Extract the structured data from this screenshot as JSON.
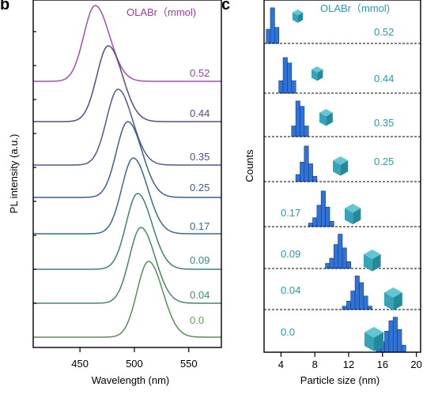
{
  "panel_labels": {
    "left": "b",
    "right": "c"
  },
  "chart_data": [
    {
      "type": "line",
      "legend_title": "OLABr（mmol)",
      "xlabel": "Wavelength (nm)",
      "ylabel": "PL intensity (a.u.)",
      "x_ticks": [
        "450",
        "500",
        "550"
      ],
      "xlim": [
        407,
        580
      ],
      "series": [
        {
          "name": "0.52",
          "peak_nm": 464,
          "color": "#a150a8",
          "label_color": "#9c3f9e"
        },
        {
          "name": "0.44",
          "peak_nm": 476,
          "color": "#5a4a82",
          "label_color": "#5a3f8e"
        },
        {
          "name": "0.35",
          "peak_nm": 485,
          "color": "#4d5c8a",
          "label_color": "#4a4f92"
        },
        {
          "name": "0.25",
          "peak_nm": 494,
          "color": "#3f5f88",
          "label_color": "#3d5e94"
        },
        {
          "name": "0.17",
          "peak_nm": 499,
          "color": "#3a6a88",
          "label_color": "#2d7196"
        },
        {
          "name": "0.09",
          "peak_nm": 503,
          "color": "#3f7e7e",
          "label_color": "#2e8c8a"
        },
        {
          "name": "0.04",
          "peak_nm": 506,
          "color": "#4a8462",
          "label_color": "#3a8f6a"
        },
        {
          "name": "0.0",
          "peak_nm": 513,
          "color": "#5a8c56",
          "label_color": "#5aa25a"
        }
      ]
    },
    {
      "type": "bar",
      "legend_title": "OLABr（mmol)",
      "xlabel": "Particle size (nm)",
      "ylabel": "Counts",
      "x_ticks": [
        "4",
        "8",
        "12",
        "16",
        "20"
      ],
      "xlim": [
        2,
        20.5
      ],
      "bar_color": "#2f73d8",
      "cube_color": "#36a3b6",
      "rows": [
        {
          "label": "0.52",
          "bins": [
            2.5,
            3.0,
            3.5
          ],
          "counts": [
            0.4,
            1.0,
            0.45
          ],
          "cube_size": 0.55
        },
        {
          "label": "0.44",
          "bins": [
            4.0,
            4.5,
            5.0,
            5.5
          ],
          "counts": [
            0.35,
            1.0,
            0.85,
            0.35
          ],
          "cube_size": 0.6
        },
        {
          "label": "0.35",
          "bins": [
            5.5,
            6.0,
            6.5,
            7.0
          ],
          "counts": [
            0.3,
            1.0,
            0.85,
            0.3
          ],
          "cube_size": 0.7
        },
        {
          "label": "0.25",
          "bins": [
            6.0,
            6.5,
            7.0,
            7.5,
            8.0
          ],
          "counts": [
            0.2,
            0.55,
            1.0,
            0.5,
            0.15
          ],
          "cube_size": 0.8
        },
        {
          "label": "0.17",
          "bins": [
            7.5,
            8.0,
            8.5,
            9.0,
            9.5,
            10.0
          ],
          "counts": [
            0.1,
            0.25,
            0.6,
            1.0,
            0.55,
            0.15
          ],
          "cube_size": 0.85
        },
        {
          "label": "0.09",
          "bins": [
            9.5,
            10.0,
            10.5,
            11.0,
            11.5,
            12.0
          ],
          "counts": [
            0.15,
            0.3,
            0.7,
            1.0,
            0.6,
            0.2
          ],
          "cube_size": 0.9
        },
        {
          "label": "0.04",
          "bins": [
            11.5,
            12.0,
            12.5,
            13.0,
            13.5,
            14.0,
            14.5
          ],
          "counts": [
            0.1,
            0.25,
            0.55,
            1.0,
            0.8,
            0.4,
            0.1
          ],
          "cube_size": 0.95
        },
        {
          "label": "0.0",
          "bins": [
            15.5,
            16.0,
            16.5,
            17.0,
            17.5,
            18.0,
            18.5
          ],
          "counts": [
            0.1,
            0.3,
            0.6,
            0.9,
            1.0,
            0.65,
            0.2
          ],
          "cube_size": 1.0
        }
      ]
    }
  ]
}
